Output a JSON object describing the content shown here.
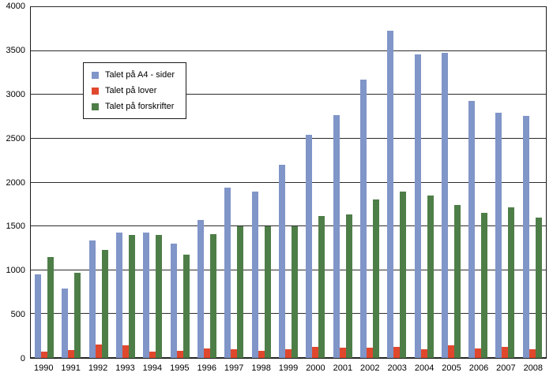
{
  "chart_data": {
    "type": "bar",
    "title": "",
    "xlabel": "",
    "ylabel": "",
    "ylim": [
      0,
      4000
    ],
    "ytick_step": 500,
    "grid": true,
    "legend_position": "upper-left-inside",
    "categories": [
      "1990",
      "1991",
      "1992",
      "1993",
      "1994",
      "1995",
      "1996",
      "1997",
      "1998",
      "1999",
      "2000",
      "2001",
      "2002",
      "2003",
      "2004",
      "2005",
      "2006",
      "2007",
      "2008"
    ],
    "series": [
      {
        "name": "Talet på A4 - sider",
        "color": "#8095c8",
        "values": [
          950,
          790,
          1340,
          1430,
          1430,
          1300,
          1570,
          1940,
          1900,
          2200,
          2540,
          2770,
          3170,
          3730,
          3460,
          3480,
          2930,
          2800,
          2760
        ]
      },
      {
        "name": "Talet på lover",
        "color": "#e0482e",
        "values": [
          70,
          90,
          150,
          140,
          75,
          85,
          105,
          100,
          80,
          100,
          125,
          120,
          115,
          130,
          100,
          140,
          105,
          125,
          100
        ]
      },
      {
        "name": "Talet på forskrifter",
        "color": "#4e7e47",
        "values": [
          1150,
          970,
          1230,
          1400,
          1400,
          1175,
          1410,
          1500,
          1500,
          1500,
          1620,
          1640,
          1810,
          1900,
          1850,
          1740,
          1650,
          1720,
          1600
        ]
      }
    ]
  }
}
